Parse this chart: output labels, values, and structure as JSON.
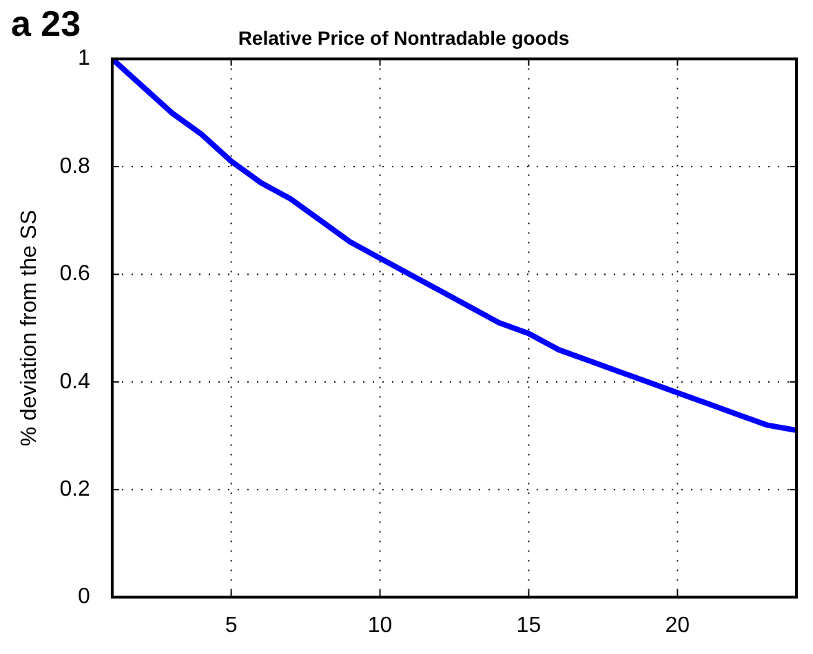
{
  "chart_data": {
    "type": "line",
    "title": "Relative Price of Nontradable goods",
    "ylabel": "% deviation from the SS",
    "annotations": [
      "a 23"
    ],
    "x": [
      1,
      2,
      3,
      4,
      5,
      6,
      7,
      8,
      9,
      10,
      11,
      12,
      13,
      14,
      15,
      16,
      17,
      18,
      19,
      20,
      21,
      22,
      23,
      24
    ],
    "series": [
      {
        "color": "#0000ff",
        "values": [
          1,
          0.95,
          0.9,
          0.86,
          0.81,
          0.77,
          0.74,
          0.7,
          0.66,
          0.63,
          0.6,
          0.57,
          0.54,
          0.51,
          0.49,
          0.46,
          0.44,
          0.42,
          0.4,
          0.38,
          0.36,
          0.34,
          0.32,
          0.31
        ]
      }
    ],
    "xlim": [
      1,
      24
    ],
    "xticks": [
      5,
      10,
      15,
      20
    ],
    "ylim": [
      0,
      1
    ],
    "yticks": [
      0,
      0.2,
      0.4,
      0.6,
      0.8,
      1
    ],
    "grid": true,
    "legend": false,
    "marker": "none",
    "line_style": "solid"
  }
}
